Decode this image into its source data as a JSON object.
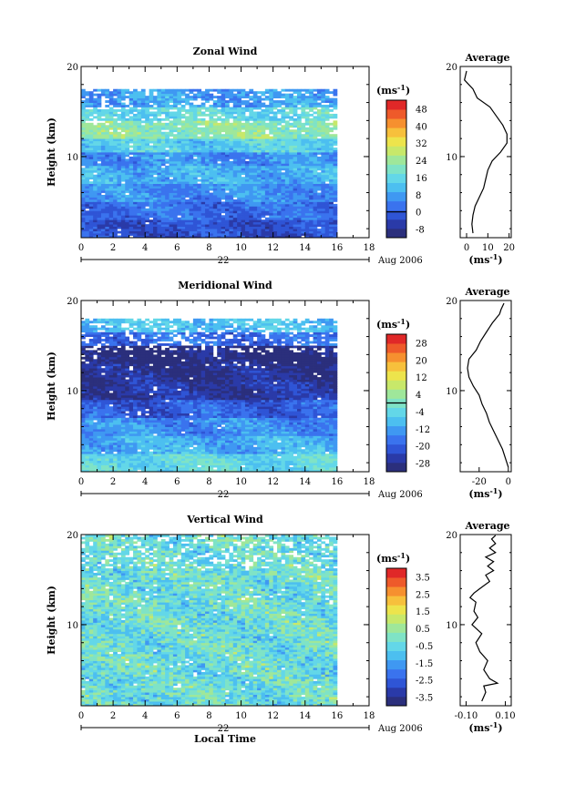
{
  "chart_data": [
    {
      "type": "heatmap",
      "title": "Zonal Wind",
      "xlabel": "",
      "ylabel": "Height (km)",
      "x_ticks": [
        "0",
        "2",
        "4",
        "6",
        "8",
        "10",
        "12",
        "14",
        "16",
        "18"
      ],
      "y_ticks": [
        "10",
        "20"
      ],
      "xlim": [
        0,
        18
      ],
      "ylim": [
        1,
        20
      ],
      "data_extent_x": [
        0,
        16
      ],
      "data_extent_y": [
        1,
        17.5
      ],
      "date_label": "22",
      "month_label": "Aug 2006",
      "colorbar": {
        "unit": "(ms",
        "unit_sup": "-1",
        "unit_close": ")",
        "ticks": [
          "48",
          "40",
          "32",
          "24",
          "16",
          "8",
          "0",
          "-8"
        ],
        "range": [
          -12,
          52
        ],
        "zero_line": 0
      },
      "layers": [
        {
          "y_from": 1,
          "y_to": 3,
          "value": -2
        },
        {
          "y_from": 3,
          "y_to": 5,
          "value": 2
        },
        {
          "y_from": 5,
          "y_to": 7,
          "value": 6
        },
        {
          "y_from": 7,
          "y_to": 9,
          "value": 10
        },
        {
          "y_from": 9,
          "y_to": 10.5,
          "value": 6
        },
        {
          "y_from": 10.5,
          "y_to": 12,
          "value": 14
        },
        {
          "y_from": 12,
          "y_to": 14,
          "value": 22
        },
        {
          "y_from": 14,
          "y_to": 15.5,
          "value": 16
        },
        {
          "y_from": 15.5,
          "y_to": 17.5,
          "value": 8
        }
      ],
      "profile": {
        "title": "Average",
        "x_ticks": [
          "0",
          "10",
          "20"
        ],
        "xlim": [
          -3,
          21
        ],
        "y_ticks": [
          "10",
          "20"
        ],
        "ylim": [
          1,
          20
        ],
        "xlabel": "(ms",
        "xlabel_sup": "-1",
        "xlabel_close": ")",
        "x": [
          3,
          2.5,
          3,
          4,
          6,
          8,
          9,
          10,
          12,
          16,
          19,
          19,
          17,
          14,
          11,
          5,
          3,
          -1,
          0
        ],
        "y": [
          1.5,
          2.5,
          3.5,
          4.5,
          5.5,
          6.5,
          7.5,
          8.5,
          9.5,
          10.5,
          11.5,
          12.5,
          13.5,
          14.5,
          15.5,
          16.5,
          17.5,
          18.5,
          19.5
        ]
      }
    },
    {
      "type": "heatmap",
      "title": "Meridional Wind",
      "xlabel": "",
      "ylabel": "Height (km)",
      "x_ticks": [
        "0",
        "2",
        "4",
        "6",
        "8",
        "10",
        "12",
        "14",
        "16",
        "18"
      ],
      "y_ticks": [
        "10",
        "20"
      ],
      "xlim": [
        0,
        18
      ],
      "ylim": [
        1,
        20
      ],
      "data_extent_x": [
        0,
        16
      ],
      "data_extent_y": [
        1,
        18
      ],
      "date_label": "22",
      "month_label": "Aug 2006",
      "colorbar": {
        "unit": "(ms",
        "unit_sup": "-1",
        "unit_close": ")",
        "ticks": [
          "28",
          "20",
          "12",
          "4",
          "-4",
          "-12",
          "-20",
          "-28"
        ],
        "range": [
          -32,
          32
        ],
        "zero_line": 0
      },
      "layers": [
        {
          "y_from": 1,
          "y_to": 3,
          "value": -4
        },
        {
          "y_from": 3,
          "y_to": 5,
          "value": -10
        },
        {
          "y_from": 5,
          "y_to": 7,
          "value": -14
        },
        {
          "y_from": 7,
          "y_to": 9,
          "value": -20
        },
        {
          "y_from": 9,
          "y_to": 11,
          "value": -26
        },
        {
          "y_from": 11,
          "y_to": 13,
          "value": -28
        },
        {
          "y_from": 13,
          "y_to": 15,
          "value": -30
        },
        {
          "y_from": 15,
          "y_to": 16.5,
          "value": -18
        },
        {
          "y_from": 16.5,
          "y_to": 18,
          "value": -8
        }
      ],
      "profile": {
        "title": "Average",
        "x_ticks": [
          "-20",
          "0"
        ],
        "xlim": [
          -33,
          2
        ],
        "y_ticks": [
          "10",
          "20"
        ],
        "ylim": [
          1,
          20
        ],
        "xlabel": "(ms",
        "xlabel_sup": "-1",
        "xlabel_close": ")",
        "x": [
          0,
          -2,
          -4,
          -7,
          -10,
          -13,
          -15,
          -18,
          -20,
          -24,
          -27,
          -28,
          -27,
          -22,
          -19,
          -15,
          -13,
          -11,
          -6,
          -5,
          -3
        ],
        "y": [
          1.5,
          2.5,
          3.5,
          4.5,
          5.5,
          6.5,
          7.5,
          8.5,
          9.5,
          10.5,
          11.5,
          12.5,
          13.5,
          14.5,
          15.5,
          16.5,
          17.0,
          17.5,
          18.5,
          19.0,
          19.7
        ]
      }
    },
    {
      "type": "heatmap",
      "title": "Vertical Wind",
      "xlabel": "Local Time",
      "ylabel": "Height (km)",
      "x_ticks": [
        "0",
        "2",
        "4",
        "6",
        "8",
        "10",
        "12",
        "14",
        "16",
        "18"
      ],
      "y_ticks": [
        "10",
        "20"
      ],
      "xlim": [
        0,
        18
      ],
      "ylim": [
        1,
        20
      ],
      "data_extent_x": [
        0,
        16
      ],
      "data_extent_y": [
        1,
        20
      ],
      "date_label": "22",
      "month_label": "Aug 2006",
      "colorbar": {
        "unit": "(ms",
        "unit_sup": "-1",
        "unit_close": ")",
        "ticks": [
          "3.5",
          "2.5",
          "1.5",
          "0.5",
          "-0.5",
          "-1.5",
          "-2.5",
          "-3.5"
        ],
        "range": [
          -4,
          4
        ],
        "zero_line": null
      },
      "layers": [
        {
          "y_from": 1,
          "y_to": 20,
          "value": -0.3
        }
      ],
      "profile": {
        "title": "Average",
        "x_ticks": [
          "-0.10",
          "0.10"
        ],
        "xlim": [
          -0.13,
          0.13
        ],
        "y_ticks": [
          "10",
          "20"
        ],
        "ylim": [
          1,
          20
        ],
        "xlabel": "(ms",
        "xlabel_sup": "-1",
        "xlabel_close": ")",
        "x": [
          -0.02,
          0.0,
          -0.01,
          0.06,
          0.02,
          -0.01,
          0.01,
          -0.03,
          -0.05,
          -0.02,
          -0.07,
          -0.04,
          -0.06,
          -0.05,
          -0.08,
          -0.06,
          -0.03,
          0.02,
          0.0,
          0.04,
          0.01,
          0.04,
          0.0,
          0.05,
          0.02,
          0.05,
          0.03,
          0.05
        ],
        "y": [
          1.5,
          2.5,
          3.2,
          3.5,
          4.0,
          5.0,
          6.0,
          7.0,
          8.0,
          9.0,
          10.0,
          10.8,
          11.5,
          12.5,
          13.0,
          13.5,
          14.0,
          14.8,
          15.5,
          16.0,
          16.5,
          17.0,
          17.5,
          18.0,
          18.5,
          19.0,
          19.5,
          19.9
        ]
      }
    }
  ]
}
